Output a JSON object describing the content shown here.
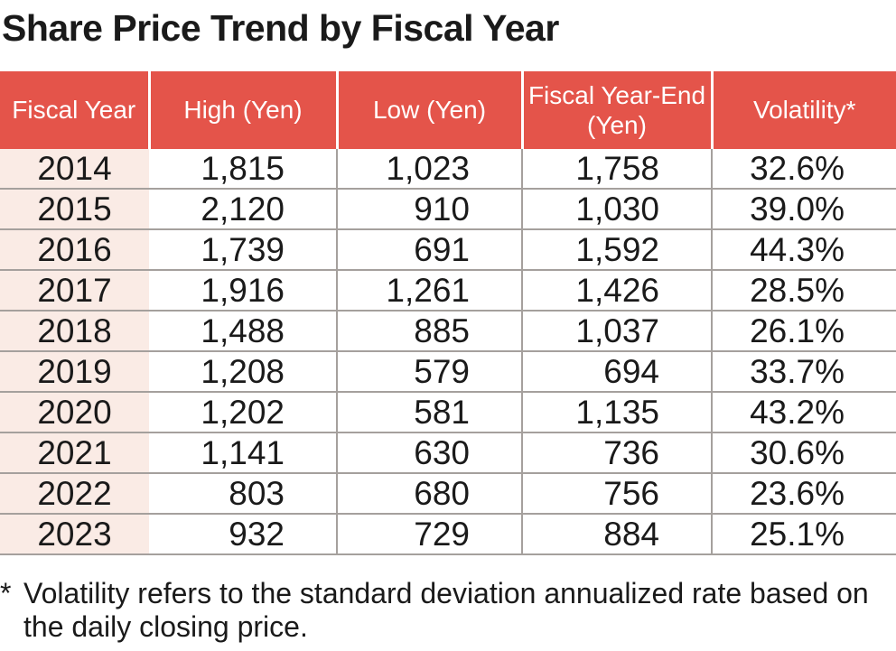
{
  "title": "Share Price Trend by Fiscal Year",
  "table": {
    "columns": [
      "Fiscal Year",
      "High (Yen)",
      "Low (Yen)",
      "Fiscal Year-End (Yen)",
      "Volatility*"
    ],
    "rows": [
      [
        "2014",
        "1,815",
        "1,023",
        "1,758",
        "32.6%"
      ],
      [
        "2015",
        "2,120",
        "910",
        "1,030",
        "39.0%"
      ],
      [
        "2016",
        "1,739",
        "691",
        "1,592",
        "44.3%"
      ],
      [
        "2017",
        "1,916",
        "1,261",
        "1,426",
        "28.5%"
      ],
      [
        "2018",
        "1,488",
        "885",
        "1,037",
        "26.1%"
      ],
      [
        "2019",
        "1,208",
        "579",
        "694",
        "33.7%"
      ],
      [
        "2020",
        "1,202",
        "581",
        "1,135",
        "43.2%"
      ],
      [
        "2021",
        "1,141",
        "630",
        "736",
        "30.6%"
      ],
      [
        "2022",
        "803",
        "680",
        "756",
        "23.6%"
      ],
      [
        "2023",
        "932",
        "729",
        "884",
        "25.1%"
      ]
    ]
  },
  "footnote": {
    "marker": "*",
    "text": "Volatility refers to the standard deviation annualized rate based on the daily closing price."
  },
  "colors": {
    "header_background": "#E4544A",
    "header_text": "#ffffff",
    "year_column_background": "#FAEBE5",
    "grid_line": "#A5A09D",
    "body_text": "#1a1a1a"
  }
}
